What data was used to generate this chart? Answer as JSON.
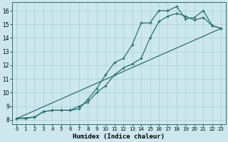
{
  "xlabel": "Humidex (Indice chaleur)",
  "bg_color": "#cce8ee",
  "grid_color": "#aaccd4",
  "line_color": "#2a6e6a",
  "xlim": [
    -0.5,
    23.5
  ],
  "ylim": [
    7.7,
    16.6
  ],
  "xticks": [
    0,
    1,
    2,
    3,
    4,
    5,
    6,
    7,
    8,
    9,
    10,
    11,
    12,
    13,
    14,
    15,
    16,
    17,
    18,
    19,
    20,
    21,
    22,
    23
  ],
  "yticks": [
    8,
    9,
    10,
    11,
    12,
    13,
    14,
    15,
    16
  ],
  "line1_x": [
    0,
    1,
    2,
    3,
    4,
    5,
    6,
    7,
    8,
    9,
    10,
    11,
    12,
    13,
    14,
    15,
    16,
    17,
    18,
    19,
    20,
    21,
    22,
    23
  ],
  "line1_y": [
    8.1,
    8.1,
    8.2,
    8.6,
    8.7,
    8.7,
    8.7,
    8.8,
    9.5,
    10.3,
    11.3,
    12.2,
    12.5,
    13.5,
    15.1,
    15.1,
    16.0,
    16.0,
    16.3,
    15.4,
    15.5,
    16.0,
    14.9,
    14.7
  ],
  "line2_x": [
    0,
    2,
    3,
    4,
    5,
    6,
    7,
    8,
    9,
    10,
    11,
    12,
    13,
    14,
    15,
    16,
    17,
    18,
    19,
    20,
    21,
    22,
    23
  ],
  "line2_y": [
    8.1,
    8.2,
    8.6,
    8.7,
    8.7,
    8.7,
    9.0,
    9.3,
    10.0,
    10.5,
    11.3,
    11.8,
    12.1,
    12.5,
    14.0,
    15.2,
    15.6,
    15.8,
    15.6,
    15.3,
    15.5,
    14.9,
    14.7
  ],
  "line3_x": [
    0,
    23
  ],
  "line3_y": [
    8.1,
    14.7
  ]
}
